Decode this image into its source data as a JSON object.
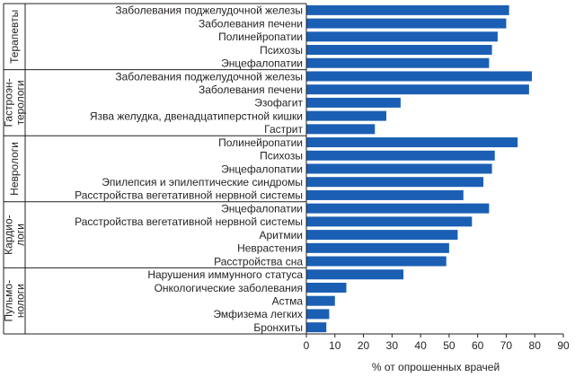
{
  "chart_data": {
    "type": "bar",
    "orientation": "horizontal",
    "xlabel": "% от опрошенных врачей",
    "xlim": [
      0,
      90
    ],
    "xticks": [
      0,
      10,
      20,
      30,
      40,
      50,
      60,
      70,
      80,
      90
    ],
    "grid": false,
    "bar_color": "#1a5fb4",
    "groups": [
      {
        "label": [
          "Терапевты"
        ],
        "items": [
          {
            "label": "Заболевания поджелудочной железы",
            "value": 71
          },
          {
            "label": "Заболевания печени",
            "value": 70
          },
          {
            "label": "Полинейропатии",
            "value": 67
          },
          {
            "label": "Психозы",
            "value": 65
          },
          {
            "label": "Энцефалопатии",
            "value": 64
          }
        ]
      },
      {
        "label": [
          "Гастроэн-",
          "терологи"
        ],
        "items": [
          {
            "label": "Заболевания поджелудочной железы",
            "value": 79
          },
          {
            "label": "Заболевания печени",
            "value": 78
          },
          {
            "label": "Эзофагит",
            "value": 33
          },
          {
            "label": "Язва желудка, двенадцатиперстной кишки",
            "value": 28
          },
          {
            "label": "Гастрит",
            "value": 24
          }
        ]
      },
      {
        "label": [
          "Неврологи"
        ],
        "items": [
          {
            "label": "Полинейропатии",
            "value": 74
          },
          {
            "label": "Психозы",
            "value": 66
          },
          {
            "label": "Энцефалопатии",
            "value": 65
          },
          {
            "label": "Эпилепсия и эпилептические синдромы",
            "value": 62
          },
          {
            "label": "Расстройства вегетативной нервной системы",
            "value": 55
          }
        ]
      },
      {
        "label": [
          "Кардио-",
          "логи"
        ],
        "items": [
          {
            "label": "Энцефалопатии",
            "value": 64
          },
          {
            "label": "Расстройства вегетативной нервной системы",
            "value": 58
          },
          {
            "label": "Аритмии",
            "value": 53
          },
          {
            "label": "Неврастения",
            "value": 50
          },
          {
            "label": "Расстройства сна",
            "value": 49
          }
        ]
      },
      {
        "label": [
          "Пульмо-",
          "нологи"
        ],
        "items": [
          {
            "label": "Нарушения иммунного статуса",
            "value": 34
          },
          {
            "label": "Онкологические заболевания",
            "value": 14
          },
          {
            "label": "Астма",
            "value": 10
          },
          {
            "label": "Эмфизема легких",
            "value": 8
          },
          {
            "label": "Бронхиты",
            "value": 7
          }
        ]
      }
    ]
  }
}
